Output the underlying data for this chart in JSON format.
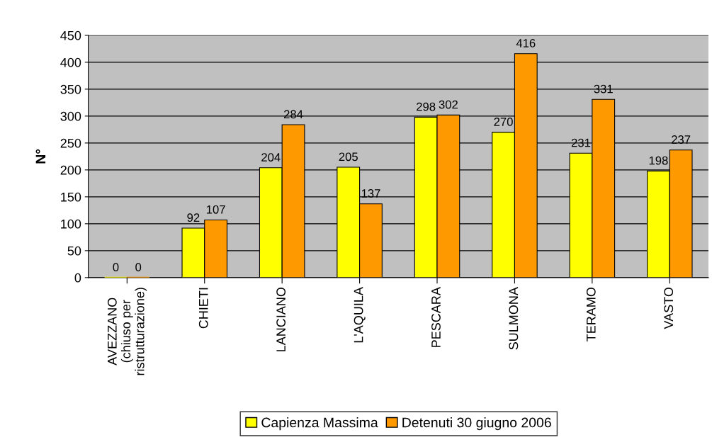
{
  "chart_data": {
    "type": "bar",
    "categories": [
      "AVEZZANO\n(chiuso per\nristrutturazione)",
      "CHIETI",
      "LANCIANO",
      "L'AQUILA",
      "PESCARA",
      "SULMONA",
      "TERAMO",
      "VASTO"
    ],
    "series": [
      {
        "name": "Capienza Massima",
        "color": "#ffff00",
        "values": [
          0,
          92,
          204,
          205,
          298,
          270,
          231,
          198
        ]
      },
      {
        "name": "Detenuti 30 giugno 2006",
        "color": "#ff9900",
        "values": [
          0,
          107,
          284,
          137,
          302,
          416,
          331,
          237
        ]
      }
    ],
    "ylabel": "N°",
    "ylim": [
      0,
      450
    ],
    "yticks": [
      0,
      50,
      100,
      150,
      200,
      250,
      300,
      350,
      400,
      450
    ],
    "grid": "y",
    "legend": "bottom",
    "data_labels": true
  }
}
